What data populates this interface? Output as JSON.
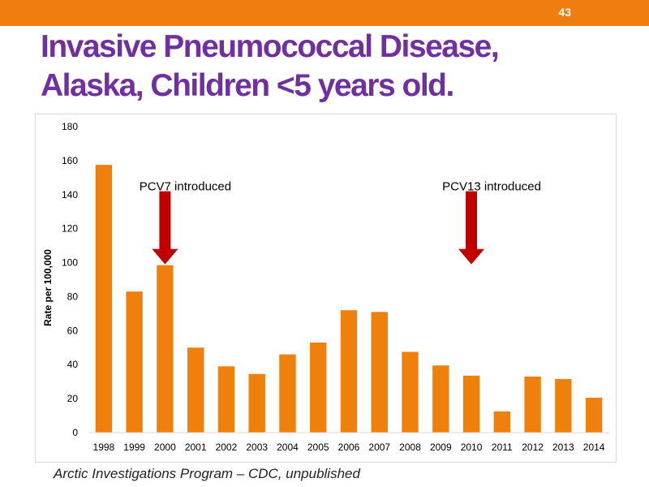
{
  "slide": {
    "number": "43",
    "title_lines": [
      "Invasive Pneumococcal Disease,",
      "Alaska, Children <5 years old."
    ],
    "source": "Arctic Investigations Program – CDC, unpublished"
  },
  "colors": {
    "top_bar": "#ef7d0f",
    "title": "#7030a0",
    "bar": "#f0800c",
    "arrow": "#c00000",
    "axis_text": "#000000"
  },
  "chart_data": {
    "type": "bar",
    "categories": [
      "1998",
      "1999",
      "2000",
      "2001",
      "2002",
      "2003",
      "2004",
      "2005",
      "2006",
      "2007",
      "2008",
      "2009",
      "2010",
      "2011",
      "2012",
      "2013",
      "2014"
    ],
    "values": [
      157.5,
      83,
      98.5,
      50,
      39,
      34.5,
      46,
      53,
      72,
      71,
      47.5,
      39.5,
      33.5,
      12.5,
      33,
      31.5,
      20.5
    ],
    "title": "",
    "xlabel": "",
    "ylabel": "Rate per 100,000",
    "ylim": [
      0,
      180
    ],
    "yticks": [
      0,
      20,
      40,
      60,
      80,
      100,
      120,
      140,
      160,
      180
    ],
    "grid": false,
    "legend": "none",
    "annotations": [
      {
        "text": "PCV7 introduced",
        "category": "2000",
        "marker": "down-arrow"
      },
      {
        "text": "PCV13 introduced",
        "category": "2010",
        "marker": "down-arrow"
      }
    ]
  }
}
